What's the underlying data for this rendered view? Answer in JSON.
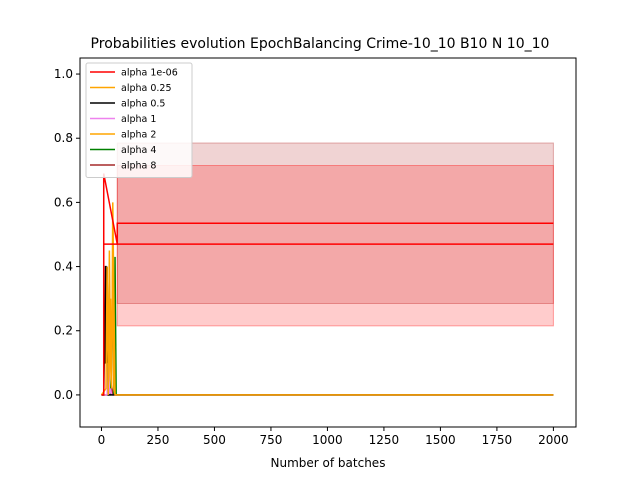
{
  "chart_data": {
    "type": "line",
    "title": "Probabilities evolution EpochBalancing Crime-10_10 B10 N 10_10",
    "xlabel": "Number of batches",
    "ylabel": "",
    "xlim": [
      -95,
      2100
    ],
    "ylim": [
      -0.1,
      1.05
    ],
    "xticks": [
      0,
      250,
      500,
      750,
      1000,
      1250,
      1500,
      1750,
      2000
    ],
    "yticks": [
      0.0,
      0.2,
      0.4,
      0.6,
      0.8,
      1.0
    ],
    "xtick_labels": [
      "0",
      "250",
      "500",
      "750",
      "1000",
      "1250",
      "1500",
      "1750",
      "2000"
    ],
    "ytick_labels": [
      "0.0",
      "0.2",
      "0.4",
      "0.6",
      "0.8",
      "1.0"
    ],
    "grid": false,
    "legend_position": "top-left",
    "bands": [
      {
        "color": "#b22222",
        "opacity": 0.2,
        "x": [
          70,
          2000
        ],
        "y_low": [
          0.285,
          0.285
        ],
        "y_high": [
          0.785,
          0.785
        ]
      },
      {
        "color": "#ff0000",
        "opacity": 0.2,
        "x": [
          70,
          2000
        ],
        "y_low": [
          0.215,
          0.215
        ],
        "y_high": [
          0.715,
          0.715
        ]
      }
    ],
    "series": [
      {
        "name": "alpha 1e-06",
        "color": "#ff0000",
        "x": [
          0,
          10,
          10,
          70,
          70,
          2000
        ],
        "y": [
          0.0,
          0.0,
          0.69,
          0.47,
          0.47,
          0.47
        ],
        "secondary": {
          "x": [
            10,
            70,
            70,
            2000
          ],
          "y": [
            0.47,
            0.47,
            0.535,
            0.535
          ]
        }
      },
      {
        "name": "alpha 0.25",
        "color": "#ffa500",
        "x": [
          0,
          20,
          25,
          30,
          35,
          40,
          45,
          50,
          55,
          60,
          65,
          70,
          2000
        ],
        "y": [
          0.0,
          0.02,
          0.4,
          0.0,
          0.45,
          0.1,
          0.02,
          0.6,
          0.3,
          0.0,
          0.0,
          0.0,
          0.0
        ]
      },
      {
        "name": "alpha 0.5",
        "color": "#000000",
        "x": [
          0,
          10,
          12,
          15,
          18,
          20,
          22,
          25,
          30,
          35,
          2000
        ],
        "y": [
          0.0,
          0.0,
          0.1,
          0.1,
          0.4,
          0.4,
          0.1,
          0.4,
          0.0,
          0.0,
          0.0
        ]
      },
      {
        "name": "alpha 1",
        "color": "#ee82ee",
        "x": [
          0,
          25,
          30,
          35,
          40,
          45,
          50,
          2000
        ],
        "y": [
          0.0,
          0.0,
          0.1,
          0.0,
          0.02,
          0.0,
          0.0,
          0.0
        ]
      },
      {
        "name": "alpha 2",
        "color": "#ffa500",
        "x": [
          0,
          30,
          35,
          40,
          45,
          50,
          55,
          60,
          2000
        ],
        "y": [
          0.0,
          0.0,
          0.05,
          0.3,
          0.1,
          0.4,
          0.02,
          0.0,
          0.0
        ]
      },
      {
        "name": "alpha 4",
        "color": "#008000",
        "x": [
          0,
          40,
          45,
          50,
          55,
          60,
          65,
          2000
        ],
        "y": [
          0.0,
          0.0,
          0.1,
          0.4,
          0.0,
          0.43,
          0.0,
          0.0
        ]
      },
      {
        "name": "alpha 8",
        "color": "#a52a2a",
        "x": [
          0,
          30,
          35,
          40,
          45,
          50,
          2000
        ],
        "y": [
          0.0,
          0.0,
          0.02,
          0.0,
          0.03,
          0.0,
          0.0
        ]
      }
    ]
  }
}
